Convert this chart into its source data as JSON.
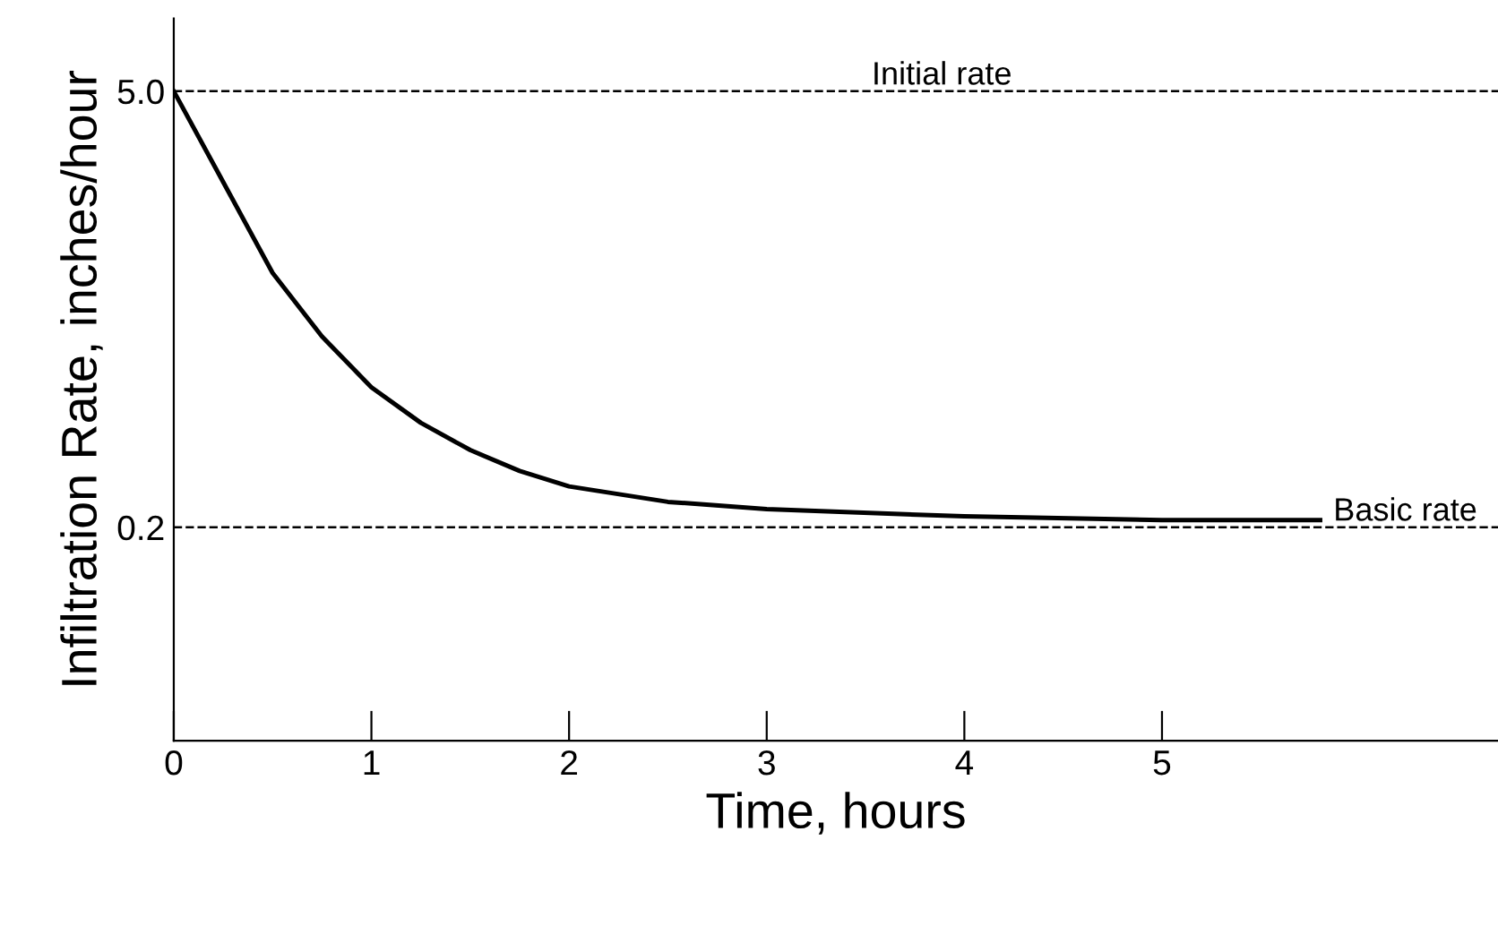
{
  "chart_data": {
    "type": "line",
    "xlabel": "Time, hours",
    "ylabel": "Infiltration Rate, inches/hour",
    "x": [
      0,
      0.25,
      0.5,
      0.75,
      1,
      1.25,
      1.5,
      1.75,
      2,
      2.5,
      3,
      4,
      5,
      5.8
    ],
    "series": [
      {
        "color": "#000000",
        "values": [
          5.0,
          4.0,
          3.0,
          2.3,
          1.74,
          1.35,
          1.05,
          0.82,
          0.65,
          0.48,
          0.4,
          0.32,
          0.28,
          0.28
        ]
      }
    ],
    "xlim": [
      0,
      6.7
    ],
    "ylim": [
      -2.15,
      5.8
    ],
    "xticks": [
      0,
      1,
      2,
      3,
      4,
      5
    ],
    "yticks": [
      {
        "value": 0.2,
        "label": "0.2"
      },
      {
        "value": 5.0,
        "label": "5.0"
      }
    ],
    "ref_lines": [
      {
        "axis": "y",
        "value": 5.0,
        "label": "Initial rate",
        "line_style": "dashed"
      },
      {
        "axis": "y",
        "value": 0.2,
        "label": "Basic rate",
        "line_style": "dashed"
      }
    ],
    "grid": false,
    "legend": false,
    "marker": "none",
    "line_style": "solid"
  }
}
